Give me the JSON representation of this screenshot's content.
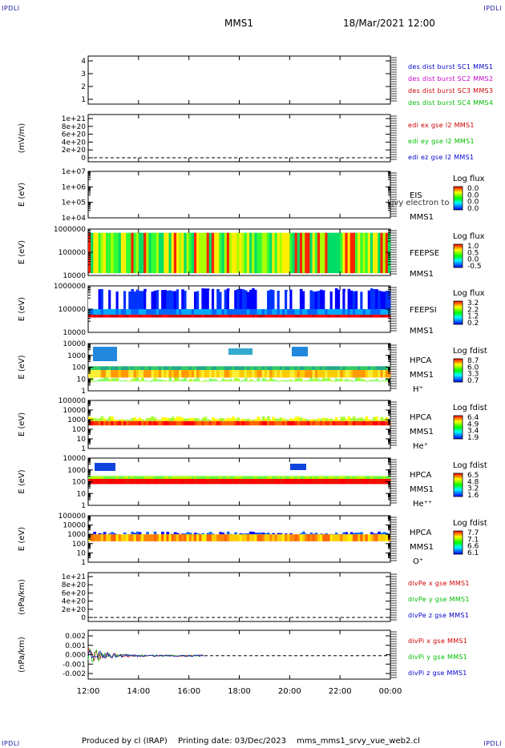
{
  "header": {
    "corner_left_top": "IPDLI",
    "corner_right_top": "IPDLI",
    "corner_left_bottom": "IPDLI",
    "corner_right_bottom": "IPDLI",
    "spacecraft": "MMS1",
    "datetime": "18/Mar/2021 12:00"
  },
  "footer": {
    "produced_by": "Produced by cl (IRAP)",
    "printing_date": "Printing date: 03/Dec/2023",
    "filename": "mms_mms1_srvy_vue_web2.cl"
  },
  "chart_data": {
    "type": "multi-panel-timeseries",
    "x_ticks": [
      "12:00",
      "14:00",
      "16:00",
      "18:00",
      "20:00",
      "22:00",
      "00:00"
    ],
    "panels": [
      {
        "id": "p1",
        "type": "line",
        "yticks": [
          "4",
          "3",
          "2",
          "1"
        ],
        "legend": [
          {
            "text": "des dist burst SC1 MMS1",
            "color": "#0000cc"
          },
          {
            "text": "des dist burst SC2 MMS2",
            "color": "#cc00cc"
          },
          {
            "text": "des dist burst SC3 MMS3",
            "color": "#cc0000"
          },
          {
            "text": "des dist burst SC4 MMS4",
            "color": "#00bb00"
          }
        ]
      },
      {
        "id": "p2",
        "type": "line",
        "ylabel": "(mV/m)",
        "yticks": [
          "1e+21",
          "8e+20",
          "6e+20",
          "4e+20",
          "2e+20",
          "0"
        ],
        "legend": [
          {
            "text": "edi ex gse l2 MMS1",
            "color": "#cc0000"
          },
          {
            "text": "edi ey gse l2 MMS1",
            "color": "#00bb00"
          },
          {
            "text": "edi ez gse l2 MMS1",
            "color": "#0000cc"
          }
        ]
      },
      {
        "id": "p3",
        "type": "heatmap",
        "ylabel": "E (eV)",
        "yticks": [
          "1e+07",
          "1e+06",
          "1e+05",
          "1e+04"
        ],
        "instrument": [
          "EIS",
          "MMS1"
        ],
        "extra": "Ljvy electron to",
        "colorbar": {
          "title": "Log flux",
          "ticks": [
            "0.0",
            "0.0",
            "0.0",
            "0.0"
          ]
        }
      },
      {
        "id": "p4",
        "type": "heatmap",
        "ylabel": "E (eV)",
        "yticks": [
          "1000000",
          "100000",
          "10000"
        ],
        "instrument": [
          "FEEPSE",
          "MMS1"
        ],
        "colorbar": {
          "title": "Log flux",
          "ticks": [
            "1.0",
            "0.5",
            "0.0",
            "-0.5"
          ]
        }
      },
      {
        "id": "p5",
        "type": "heatmap",
        "ylabel": "E (eV)",
        "yticks": [
          "1000000",
          "100000",
          "10000"
        ],
        "instrument": [
          "FEEPSI",
          "MMS1"
        ],
        "colorbar": {
          "title": "Log flux",
          "ticks": [
            "3.2",
            "2.2",
            "1.2",
            "0.2"
          ]
        }
      },
      {
        "id": "p6",
        "type": "heatmap",
        "ylabel": "E (eV)",
        "yticks": [
          "10000",
          "1000",
          "100",
          "10",
          "1"
        ],
        "instrument": [
          "HPCA",
          "MMS1",
          "H⁺"
        ],
        "colorbar": {
          "title": "Log fdist",
          "ticks": [
            "8.7",
            "6.0",
            "3.3",
            "0.7"
          ]
        }
      },
      {
        "id": "p7",
        "type": "heatmap",
        "ylabel": "E (eV)",
        "yticks": [
          "100000",
          "10000",
          "1000",
          "100",
          "10",
          "1"
        ],
        "instrument": [
          "HPCA",
          "MMS1",
          "He⁺"
        ],
        "colorbar": {
          "title": "Log fdist",
          "ticks": [
            "6.4",
            "4.9",
            "3.4",
            "1.9"
          ]
        }
      },
      {
        "id": "p8",
        "type": "heatmap",
        "ylabel": "E (eV)",
        "yticks": [
          "10000",
          "1000",
          "100",
          "10",
          "1"
        ],
        "instrument": [
          "HPCA",
          "MMS1",
          "He⁺⁺"
        ],
        "colorbar": {
          "title": "Log fdist",
          "ticks": [
            "6.5",
            "4.8",
            "3.2",
            "1.6"
          ]
        }
      },
      {
        "id": "p9",
        "type": "heatmap",
        "ylabel": "E (eV)",
        "yticks": [
          "100000",
          "10000",
          "1000",
          "100",
          "10",
          "1"
        ],
        "instrument": [
          "HPCA",
          "MMS1",
          "O⁺"
        ],
        "colorbar": {
          "title": "Log fdist",
          "ticks": [
            "7.7",
            "7.1",
            "6.6",
            "6.1"
          ]
        }
      },
      {
        "id": "p10",
        "type": "line",
        "ylabel": "(nPa/km)",
        "yticks": [
          "1e+21",
          "8e+20",
          "6e+20",
          "4e+20",
          "2e+20",
          "0"
        ],
        "legend": [
          {
            "text": "divPe x gse MMS1",
            "color": "#cc0000"
          },
          {
            "text": "divPe y gse MMS1",
            "color": "#00bb00"
          },
          {
            "text": "divPe z gse MMS1",
            "color": "#0000cc"
          }
        ]
      },
      {
        "id": "p11",
        "type": "line",
        "ylabel": "(nPa/km)",
        "yticks": [
          "0.002",
          "0.001",
          "0.000",
          "-0.001",
          "-0.002"
        ],
        "legend": [
          {
            "text": "divPi x gse MMS1",
            "color": "#cc0000"
          },
          {
            "text": "divPi y gse MMS1",
            "color": "#00bb00"
          },
          {
            "text": "divPi z gse MMS1",
            "color": "#0000cc"
          }
        ]
      }
    ]
  }
}
